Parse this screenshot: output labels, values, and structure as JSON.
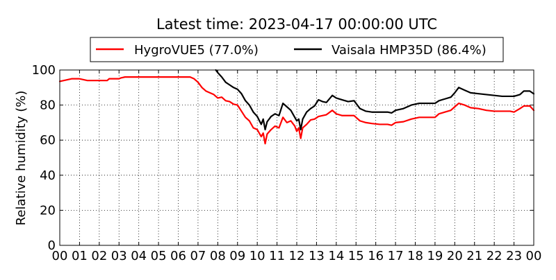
{
  "chart_data": {
    "type": "line",
    "title": "Latest time: 2023-04-17 00:00:00 UTC",
    "xlabel": "",
    "ylabel": "Relative humidity (%)",
    "xlim": [
      0,
      24
    ],
    "ylim": [
      0,
      100
    ],
    "grid": true,
    "legend_position": "top",
    "x_ticks": [
      0,
      1,
      2,
      3,
      4,
      5,
      6,
      7,
      8,
      9,
      10,
      11,
      12,
      13,
      14,
      15,
      16,
      17,
      18,
      19,
      20,
      21,
      22,
      23,
      24
    ],
    "x_tick_labels": [
      "00",
      "01",
      "02",
      "03",
      "04",
      "05",
      "06",
      "07",
      "08",
      "09",
      "10",
      "11",
      "12",
      "13",
      "14",
      "15",
      "16",
      "17",
      "18",
      "19",
      "20",
      "21",
      "22",
      "23",
      "00"
    ],
    "y_ticks": [
      0,
      20,
      40,
      60,
      80,
      100
    ],
    "y_tick_labels": [
      "0",
      "20",
      "40",
      "60",
      "80",
      "100"
    ],
    "series": [
      {
        "name": "HygroVUE5 (77.0%)",
        "color": "#ff0000",
        "points": [
          [
            0.0,
            93.5
          ],
          [
            0.2,
            94.0
          ],
          [
            0.4,
            94.5
          ],
          [
            0.6,
            95.0
          ],
          [
            1.0,
            95.0
          ],
          [
            1.2,
            94.5
          ],
          [
            1.4,
            94.0
          ],
          [
            2.0,
            94.0
          ],
          [
            2.4,
            94.0
          ],
          [
            2.5,
            95.0
          ],
          [
            3.0,
            95.0
          ],
          [
            3.1,
            95.5
          ],
          [
            3.3,
            96.0
          ],
          [
            4.0,
            96.0
          ],
          [
            5.0,
            96.0
          ],
          [
            6.0,
            96.0
          ],
          [
            6.6,
            96.0
          ],
          [
            6.8,
            95.0
          ],
          [
            7.0,
            93.0
          ],
          [
            7.2,
            90.0
          ],
          [
            7.4,
            88.0
          ],
          [
            7.6,
            87.0
          ],
          [
            7.8,
            86.0
          ],
          [
            8.0,
            84.0
          ],
          [
            8.2,
            84.5
          ],
          [
            8.4,
            82.5
          ],
          [
            8.6,
            82.0
          ],
          [
            8.8,
            80.5
          ],
          [
            9.0,
            80.0
          ],
          [
            9.2,
            76.5
          ],
          [
            9.4,
            73.0
          ],
          [
            9.6,
            71.0
          ],
          [
            9.8,
            67.0
          ],
          [
            10.0,
            66.0
          ],
          [
            10.2,
            62.0
          ],
          [
            10.3,
            64.0
          ],
          [
            10.4,
            58.0
          ],
          [
            10.5,
            63.5
          ],
          [
            10.7,
            66.0
          ],
          [
            10.9,
            68.0
          ],
          [
            11.1,
            67.0
          ],
          [
            11.3,
            73.0
          ],
          [
            11.5,
            70.0
          ],
          [
            11.7,
            71.0
          ],
          [
            11.9,
            68.0
          ],
          [
            12.0,
            65.0
          ],
          [
            12.1,
            67.0
          ],
          [
            12.2,
            61.0
          ],
          [
            12.3,
            67.0
          ],
          [
            12.5,
            69.0
          ],
          [
            12.7,
            71.5
          ],
          [
            12.9,
            72.0
          ],
          [
            13.1,
            73.5
          ],
          [
            13.3,
            74.0
          ],
          [
            13.5,
            74.5
          ],
          [
            13.8,
            77.0
          ],
          [
            14.0,
            75.0
          ],
          [
            14.3,
            74.0
          ],
          [
            14.6,
            74.0
          ],
          [
            14.9,
            74.0
          ],
          [
            15.2,
            71.0
          ],
          [
            15.5,
            70.0
          ],
          [
            15.8,
            69.5
          ],
          [
            16.2,
            69.0
          ],
          [
            16.6,
            69.0
          ],
          [
            16.8,
            68.5
          ],
          [
            17.0,
            70.0
          ],
          [
            17.4,
            70.5
          ],
          [
            17.8,
            72.0
          ],
          [
            18.2,
            73.0
          ],
          [
            18.6,
            73.0
          ],
          [
            19.0,
            73.0
          ],
          [
            19.2,
            75.0
          ],
          [
            19.5,
            76.0
          ],
          [
            19.8,
            77.0
          ],
          [
            20.0,
            79.0
          ],
          [
            20.2,
            81.0
          ],
          [
            20.5,
            80.0
          ],
          [
            20.8,
            78.5
          ],
          [
            21.2,
            78.0
          ],
          [
            21.6,
            77.0
          ],
          [
            22.0,
            76.5
          ],
          [
            22.4,
            76.5
          ],
          [
            22.8,
            76.5
          ],
          [
            23.0,
            76.0
          ],
          [
            23.3,
            78.0
          ],
          [
            23.5,
            79.5
          ],
          [
            23.8,
            79.5
          ],
          [
            24.0,
            77.0
          ]
        ]
      },
      {
        "name": "Vaisala HMP35D (86.4%)",
        "color": "#000000",
        "points": [
          [
            7.9,
            100.0
          ],
          [
            8.0,
            98.5
          ],
          [
            8.2,
            96.0
          ],
          [
            8.4,
            93.0
          ],
          [
            8.6,
            91.5
          ],
          [
            8.8,
            90.0
          ],
          [
            9.0,
            89.0
          ],
          [
            9.2,
            86.5
          ],
          [
            9.4,
            82.5
          ],
          [
            9.6,
            80.0
          ],
          [
            9.8,
            76.0
          ],
          [
            10.0,
            73.5
          ],
          [
            10.2,
            69.0
          ],
          [
            10.3,
            72.0
          ],
          [
            10.4,
            66.0
          ],
          [
            10.5,
            70.5
          ],
          [
            10.7,
            73.5
          ],
          [
            10.9,
            75.0
          ],
          [
            11.1,
            74.0
          ],
          [
            11.3,
            81.0
          ],
          [
            11.5,
            79.0
          ],
          [
            11.7,
            77.0
          ],
          [
            11.9,
            73.0
          ],
          [
            12.0,
            71.0
          ],
          [
            12.1,
            72.0
          ],
          [
            12.2,
            66.0
          ],
          [
            12.3,
            72.0
          ],
          [
            12.5,
            76.0
          ],
          [
            12.7,
            78.0
          ],
          [
            12.9,
            79.5
          ],
          [
            13.1,
            83.0
          ],
          [
            13.3,
            82.0
          ],
          [
            13.5,
            81.5
          ],
          [
            13.8,
            85.5
          ],
          [
            14.0,
            84.0
          ],
          [
            14.3,
            83.0
          ],
          [
            14.6,
            82.0
          ],
          [
            14.9,
            82.5
          ],
          [
            15.2,
            78.0
          ],
          [
            15.5,
            76.5
          ],
          [
            15.8,
            76.0
          ],
          [
            16.2,
            76.0
          ],
          [
            16.6,
            76.0
          ],
          [
            16.8,
            75.5
          ],
          [
            17.0,
            77.0
          ],
          [
            17.4,
            78.0
          ],
          [
            17.8,
            80.0
          ],
          [
            18.2,
            81.0
          ],
          [
            18.6,
            81.0
          ],
          [
            19.0,
            81.0
          ],
          [
            19.2,
            82.5
          ],
          [
            19.5,
            83.5
          ],
          [
            19.8,
            84.5
          ],
          [
            20.0,
            87.0
          ],
          [
            20.2,
            90.0
          ],
          [
            20.5,
            88.5
          ],
          [
            20.8,
            87.0
          ],
          [
            21.2,
            86.5
          ],
          [
            21.6,
            86.0
          ],
          [
            22.0,
            85.5
          ],
          [
            22.4,
            85.0
          ],
          [
            22.8,
            85.0
          ],
          [
            23.0,
            85.0
          ],
          [
            23.3,
            86.0
          ],
          [
            23.5,
            88.0
          ],
          [
            23.8,
            88.0
          ],
          [
            24.0,
            86.4
          ]
        ]
      }
    ]
  }
}
